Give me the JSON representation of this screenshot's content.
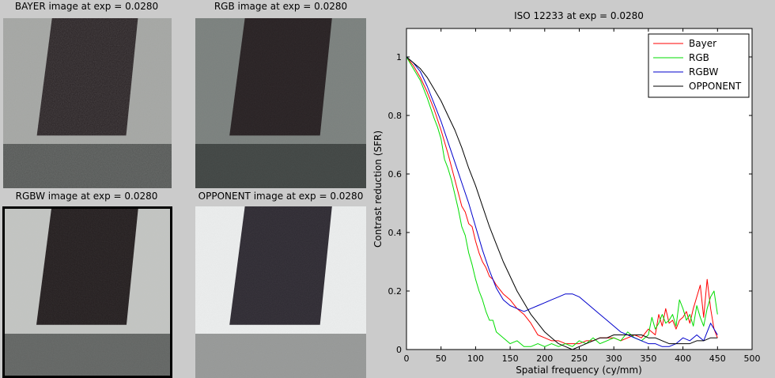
{
  "panels": [
    {
      "title": "BAYER image at exp = 0.0280",
      "bg": "#a3a5a2",
      "bar": "#9c33b5",
      "dark": "#251e20",
      "bottom": "#525553",
      "noise": 0.22,
      "selected": false
    },
    {
      "title": "RGB image at exp = 0.0280",
      "bg": "#7a807d",
      "bar": "#7a807d",
      "dark": "#261f21",
      "bottom": "#3f4442",
      "noise": 0.08,
      "selected": false
    },
    {
      "title": "RGBW image at exp = 0.0280",
      "bg": "#c3c5c2",
      "bar": "#c3c5c2",
      "dark": "#211b1c",
      "bottom": "#606361",
      "noise": 0.12,
      "selected": true
    },
    {
      "title": "OPPONENT image at exp = 0.0280",
      "bg": "#eceeee",
      "bar": "#eceeee",
      "dark": "#2c2830",
      "bottom": "#969897",
      "noise": 0.1,
      "selected": false
    }
  ],
  "chart_data": {
    "type": "line",
    "title": "ISO 12233 at exp = 0.0280",
    "xlabel": "Spatial frequency (cy/mm)",
    "ylabel": "Contrast reduction (SFR)",
    "xlim": [
      0,
      500
    ],
    "ylim": [
      0,
      1
    ],
    "xticks": [
      0,
      50,
      100,
      150,
      200,
      250,
      300,
      350,
      400,
      450,
      500
    ],
    "yticks": [
      0,
      0.2,
      0.4,
      0.6,
      0.8,
      1
    ],
    "grid": false,
    "legend_position": "top-right",
    "series": [
      {
        "name": "Bayer",
        "color": "#ff0000",
        "x": [
          0,
          10,
          20,
          30,
          40,
          50,
          60,
          70,
          80,
          85,
          90,
          95,
          100,
          105,
          110,
          115,
          120,
          125,
          130,
          140,
          150,
          160,
          170,
          180,
          190,
          200,
          210,
          220,
          230,
          240,
          250,
          260,
          270,
          280,
          290,
          300,
          310,
          320,
          330,
          340,
          350,
          360,
          365,
          370,
          375,
          380,
          385,
          390,
          395,
          400,
          405,
          410,
          415,
          420,
          425,
          430,
          435,
          440,
          445,
          450
        ],
        "y": [
          1,
          0.97,
          0.93,
          0.88,
          0.82,
          0.75,
          0.67,
          0.58,
          0.49,
          0.47,
          0.43,
          0.42,
          0.37,
          0.33,
          0.3,
          0.28,
          0.25,
          0.24,
          0.22,
          0.19,
          0.17,
          0.14,
          0.12,
          0.09,
          0.05,
          0.04,
          0.03,
          0.03,
          0.02,
          0.02,
          0.02,
          0.03,
          0.03,
          0.04,
          0.04,
          0.04,
          0.03,
          0.04,
          0.05,
          0.04,
          0.07,
          0.05,
          0.12,
          0.08,
          0.14,
          0.09,
          0.1,
          0.07,
          0.1,
          0.11,
          0.13,
          0.09,
          0.14,
          0.18,
          0.22,
          0.11,
          0.24,
          0.14,
          0.07,
          0.04
        ]
      },
      {
        "name": "RGB",
        "color": "#00dd00",
        "x": [
          0,
          10,
          20,
          30,
          40,
          45,
          50,
          55,
          60,
          65,
          70,
          75,
          80,
          85,
          90,
          95,
          100,
          105,
          110,
          115,
          120,
          125,
          130,
          140,
          150,
          160,
          170,
          180,
          190,
          200,
          210,
          220,
          230,
          240,
          250,
          260,
          270,
          280,
          290,
          300,
          310,
          320,
          330,
          340,
          350,
          355,
          360,
          365,
          370,
          375,
          380,
          385,
          390,
          395,
          400,
          405,
          410,
          415,
          420,
          425,
          430,
          435,
          440,
          445,
          450
        ],
        "y": [
          1,
          0.96,
          0.92,
          0.86,
          0.79,
          0.76,
          0.72,
          0.65,
          0.62,
          0.58,
          0.53,
          0.48,
          0.42,
          0.39,
          0.33,
          0.29,
          0.24,
          0.2,
          0.17,
          0.13,
          0.1,
          0.1,
          0.06,
          0.04,
          0.02,
          0.03,
          0.01,
          0.01,
          0.02,
          0.01,
          0.02,
          0.01,
          0.02,
          0.01,
          0.03,
          0.02,
          0.04,
          0.02,
          0.03,
          0.04,
          0.03,
          0.06,
          0.04,
          0.03,
          0.05,
          0.11,
          0.07,
          0.09,
          0.12,
          0.09,
          0.1,
          0.12,
          0.08,
          0.17,
          0.14,
          0.1,
          0.12,
          0.08,
          0.15,
          0.11,
          0.08,
          0.14,
          0.18,
          0.2,
          0.12
        ]
      },
      {
        "name": "RGBW",
        "color": "#0000cc",
        "x": [
          0,
          10,
          20,
          30,
          40,
          50,
          60,
          70,
          80,
          90,
          100,
          110,
          120,
          130,
          140,
          150,
          160,
          170,
          180,
          190,
          200,
          210,
          220,
          230,
          240,
          250,
          260,
          270,
          280,
          290,
          300,
          310,
          320,
          330,
          340,
          350,
          360,
          370,
          380,
          390,
          400,
          410,
          420,
          430,
          440,
          450
        ],
        "y": [
          1,
          0.98,
          0.95,
          0.9,
          0.84,
          0.78,
          0.71,
          0.64,
          0.57,
          0.5,
          0.42,
          0.34,
          0.27,
          0.21,
          0.17,
          0.15,
          0.14,
          0.13,
          0.14,
          0.15,
          0.16,
          0.17,
          0.18,
          0.19,
          0.19,
          0.18,
          0.16,
          0.14,
          0.12,
          0.1,
          0.08,
          0.06,
          0.05,
          0.04,
          0.03,
          0.02,
          0.02,
          0.01,
          0.01,
          0.02,
          0.04,
          0.03,
          0.05,
          0.03,
          0.09,
          0.05
        ]
      },
      {
        "name": "OPPONENT",
        "color": "#000000",
        "x": [
          0,
          10,
          20,
          30,
          40,
          50,
          60,
          70,
          80,
          90,
          100,
          110,
          120,
          130,
          140,
          150,
          160,
          170,
          180,
          190,
          200,
          210,
          220,
          230,
          240,
          250,
          260,
          270,
          280,
          290,
          300,
          310,
          320,
          330,
          340,
          350,
          360,
          370,
          380,
          390,
          400,
          410,
          420,
          430,
          440,
          450
        ],
        "y": [
          1,
          0.98,
          0.96,
          0.93,
          0.89,
          0.85,
          0.8,
          0.75,
          0.69,
          0.62,
          0.56,
          0.49,
          0.42,
          0.36,
          0.3,
          0.25,
          0.2,
          0.16,
          0.12,
          0.09,
          0.06,
          0.04,
          0.02,
          0.01,
          0.0,
          0.01,
          0.02,
          0.03,
          0.04,
          0.04,
          0.05,
          0.05,
          0.05,
          0.05,
          0.05,
          0.04,
          0.04,
          0.03,
          0.02,
          0.02,
          0.02,
          0.02,
          0.03,
          0.03,
          0.04,
          0.04
        ]
      }
    ]
  }
}
